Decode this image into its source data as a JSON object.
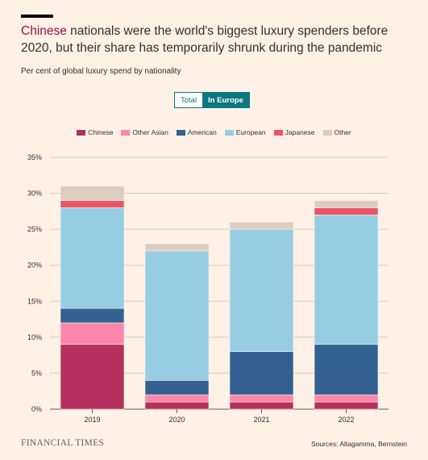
{
  "headline": {
    "highlight": "Chinese",
    "rest": " nationals were the world's biggest luxury spenders before 2020, but their share has temporarily shrunk during the pandemic"
  },
  "subtitle": "Per cent of global luxury spend by nationality",
  "toggle": {
    "options": [
      "Total",
      "In Europe"
    ],
    "selected": "In Europe"
  },
  "footer": {
    "brand": "FINANCIAL TIMES",
    "source": "Sources: Altagamma, Bernstein"
  },
  "chart_data": {
    "type": "bar",
    "stacked": true,
    "categories": [
      "2019",
      "2020",
      "2021",
      "2022"
    ],
    "series": [
      {
        "name": "Chinese",
        "color": "#b5305f",
        "values": [
          9,
          1,
          1,
          1
        ]
      },
      {
        "name": "Other Asian",
        "color": "#ff87ab",
        "values": [
          3,
          1,
          1,
          1
        ]
      },
      {
        "name": "American",
        "color": "#336191",
        "values": [
          2,
          2,
          6,
          7
        ]
      },
      {
        "name": "European",
        "color": "#96cde3",
        "values": [
          14,
          18,
          17,
          18
        ]
      },
      {
        "name": "Japanese",
        "color": "#ed5466",
        "values": [
          1,
          0,
          0,
          1
        ]
      },
      {
        "name": "Other",
        "color": "#dccdc2",
        "values": [
          2,
          1,
          1,
          1
        ]
      }
    ],
    "ylim": [
      0,
      35
    ],
    "yticks": [
      "0%",
      "5%",
      "10%",
      "15%",
      "20%",
      "25%",
      "30%",
      "35%"
    ],
    "grid": true,
    "legend": "top-center"
  }
}
